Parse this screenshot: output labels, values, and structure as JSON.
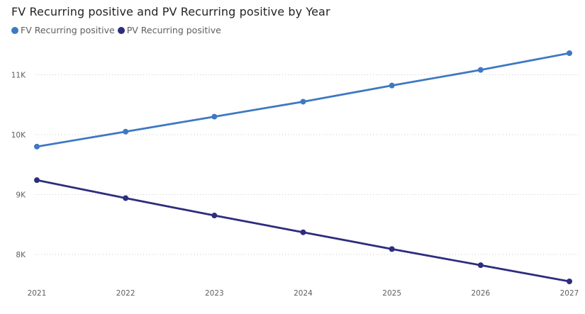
{
  "chart_data": {
    "type": "line",
    "title": "FV Recurring positive and PV Recurring positive by Year",
    "xlabel": "",
    "ylabel": "",
    "categories": [
      "2021",
      "2022",
      "2023",
      "2024",
      "2025",
      "2026",
      "2027"
    ],
    "series": [
      {
        "name": "FV Recurring positive",
        "color": "#3e78c3",
        "values": [
          9800,
          10050,
          10300,
          10550,
          10820,
          11080,
          11360
        ]
      },
      {
        "name": "PV Recurring positive",
        "color": "#2d2d7e",
        "values": [
          9240,
          8940,
          8650,
          8370,
          8090,
          7820,
          7550
        ]
      }
    ],
    "ylim": [
      7550,
      11360
    ],
    "yticks": [
      {
        "value": 8000,
        "label": "8K"
      },
      {
        "value": 9000,
        "label": "9K"
      },
      {
        "value": 10000,
        "label": "10K"
      },
      {
        "value": 11000,
        "label": "11K"
      }
    ],
    "grid": true,
    "legend": "top-left"
  }
}
